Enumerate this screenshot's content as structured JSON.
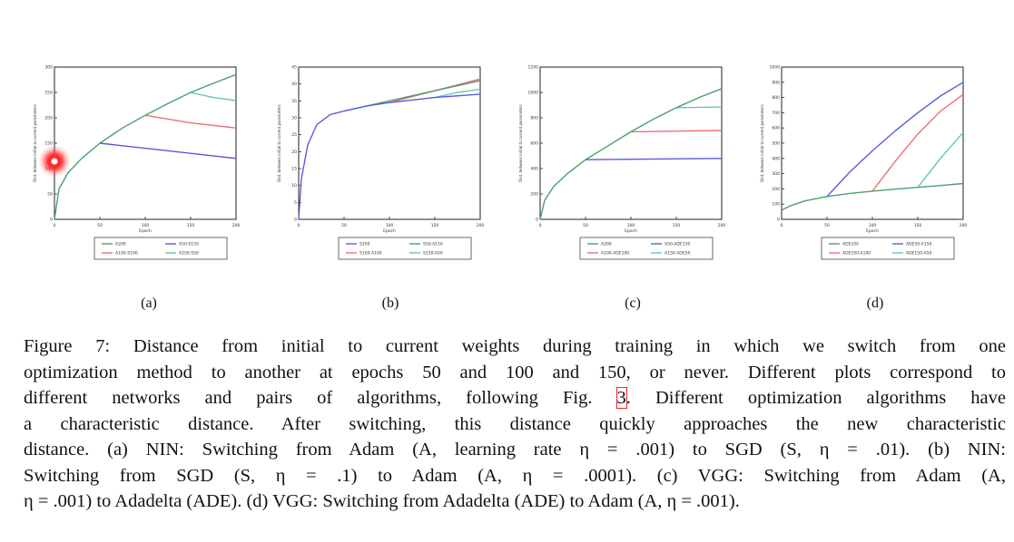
{
  "figure": {
    "sublabels": [
      "(a)",
      "(b)",
      "(c)",
      "(d)"
    ],
    "caption": {
      "prefix": "Figure 7:",
      "lines": [
        " Distance from initial to current weights during training in which we switch from one",
        "optimization method to another at epochs 50 and 100 and 150, or never. Different plots correspond to",
        "different networks and pairs of algorithms, following Fig. ",
        "a characteristic distance. After switching, this distance quickly approaches the new characteristic",
        "distance. (a) NIN: Switching from Adam (A, learning rate η = .001) to SGD (S, η = .01). (b) NIN:",
        "Switching from SGD (S, η = .1) to Adam (A, η = .0001). (c) VGG: Switching from Adam (A,",
        "η = .001) to Adadelta (ADE). (d) VGG: Switching from Adadelta (ADE) to Adam (A, η = .001)."
      ],
      "fig_ref": "3",
      "line3_tail": ". Different optimization algorithms have"
    }
  },
  "colors": {
    "green": "#4aa06a",
    "blue": "#5a5ae0",
    "red": "#ee6e7a",
    "cyan": "#5ec8b8"
  },
  "chart_data": [
    {
      "type": "line",
      "title": "",
      "xlabel": "Epoch",
      "ylabel": "Dist. between initial to current parameters",
      "xlim": [
        0,
        200
      ],
      "ylim": [
        0,
        300
      ],
      "xticks": [
        "0",
        "50",
        "100",
        "150",
        "200"
      ],
      "yticks": [
        "0",
        "50",
        "100",
        "150",
        "200",
        "250",
        "300"
      ],
      "legend": [
        "A200",
        "A50-S150",
        "A100-S100",
        "A150-S50"
      ],
      "series": [
        {
          "name": "A200",
          "color": "green",
          "x": [
            0,
            5,
            15,
            30,
            50,
            75,
            100,
            125,
            150,
            175,
            200
          ],
          "y": [
            0,
            60,
            92,
            120,
            150,
            180,
            205,
            228,
            250,
            268,
            285
          ]
        },
        {
          "name": "A50-S150",
          "color": "blue",
          "x": [
            50,
            100,
            150,
            200
          ],
          "y": [
            150,
            140,
            130,
            120
          ]
        },
        {
          "name": "A100-S100",
          "color": "red",
          "x": [
            100,
            150,
            200
          ],
          "y": [
            205,
            190,
            180
          ]
        },
        {
          "name": "A150-S50",
          "color": "cyan",
          "x": [
            150,
            175,
            200
          ],
          "y": [
            250,
            240,
            234
          ]
        }
      ]
    },
    {
      "type": "line",
      "title": "",
      "xlabel": "Epoch",
      "ylabel": "Dist. between initial to current parameters",
      "xlim": [
        0,
        200
      ],
      "ylim": [
        0,
        45
      ],
      "xticks": [
        "0",
        "50",
        "100",
        "150",
        "200"
      ],
      "yticks": [
        "0",
        "5",
        "10",
        "15",
        "20",
        "25",
        "30",
        "35",
        "40",
        "45"
      ],
      "legend": [
        "S200",
        "S50-A150",
        "S100-A100",
        "S150-A50"
      ],
      "series": [
        {
          "name": "S200",
          "color": "blue",
          "x": [
            0,
            3,
            10,
            20,
            35,
            50,
            75,
            100,
            150,
            200
          ],
          "y": [
            0,
            12,
            22,
            28,
            31,
            32,
            33.5,
            34.5,
            36,
            37
          ]
        },
        {
          "name": "S50-A150",
          "color": "green",
          "x": [
            50,
            100,
            150,
            200
          ],
          "y": [
            32,
            35,
            38,
            41
          ]
        },
        {
          "name": "S100-A100",
          "color": "red",
          "x": [
            100,
            150,
            200
          ],
          "y": [
            34.5,
            38,
            41.5
          ]
        },
        {
          "name": "S150-A50",
          "color": "cyan",
          "x": [
            150,
            175,
            200
          ],
          "y": [
            36,
            37.5,
            38.5
          ]
        }
      ]
    },
    {
      "type": "line",
      "title": "",
      "xlabel": "Epoch",
      "ylabel": "Dist. between initial to current parameters",
      "xlim": [
        0,
        200
      ],
      "ylim": [
        0,
        1200
      ],
      "xticks": [
        "0",
        "50",
        "100",
        "150",
        "200"
      ],
      "yticks": [
        "0",
        "200",
        "400",
        "600",
        "800",
        "1000",
        "1200"
      ],
      "legend": [
        "A200",
        "A50-ADE150",
        "A100-ADE100",
        "A150-ADE50"
      ],
      "series": [
        {
          "name": "A200",
          "color": "green",
          "x": [
            0,
            5,
            15,
            30,
            50,
            75,
            100,
            125,
            150,
            175,
            200
          ],
          "y": [
            0,
            150,
            260,
            360,
            470,
            580,
            690,
            790,
            880,
            960,
            1030
          ]
        },
        {
          "name": "A50-ADE150",
          "color": "blue",
          "x": [
            50,
            200
          ],
          "y": [
            470,
            480
          ]
        },
        {
          "name": "A100-ADE100",
          "color": "red",
          "x": [
            100,
            200
          ],
          "y": [
            690,
            700
          ]
        },
        {
          "name": "A150-ADE50",
          "color": "cyan",
          "x": [
            150,
            200
          ],
          "y": [
            880,
            885
          ]
        }
      ]
    },
    {
      "type": "line",
      "title": "",
      "xlabel": "Epoch",
      "ylabel": "Dist. between initial to current parameters",
      "xlim": [
        0,
        200
      ],
      "ylim": [
        0,
        1000
      ],
      "xticks": [
        "0",
        "50",
        "100",
        "150",
        "200"
      ],
      "yticks": [
        "0",
        "100",
        "200",
        "300",
        "400",
        "500",
        "600",
        "700",
        "800",
        "900",
        "1000"
      ],
      "legend": [
        "ADE200",
        "ADE50-A150",
        "ADE100-A100",
        "ADE150-A50"
      ],
      "series": [
        {
          "name": "ADE200",
          "color": "green",
          "x": [
            0,
            10,
            25,
            50,
            75,
            100,
            125,
            150,
            175,
            200
          ],
          "y": [
            60,
            90,
            120,
            150,
            170,
            185,
            198,
            210,
            222,
            235
          ]
        },
        {
          "name": "ADE50-A150",
          "color": "blue",
          "x": [
            50,
            75,
            100,
            125,
            150,
            175,
            200
          ],
          "y": [
            150,
            310,
            450,
            580,
            700,
            810,
            900
          ]
        },
        {
          "name": "ADE100-A100",
          "color": "red",
          "x": [
            100,
            125,
            150,
            175,
            200
          ],
          "y": [
            185,
            380,
            560,
            710,
            820
          ]
        },
        {
          "name": "ADE150-A50",
          "color": "cyan",
          "x": [
            150,
            175,
            200
          ],
          "y": [
            210,
            400,
            570
          ]
        }
      ]
    }
  ]
}
